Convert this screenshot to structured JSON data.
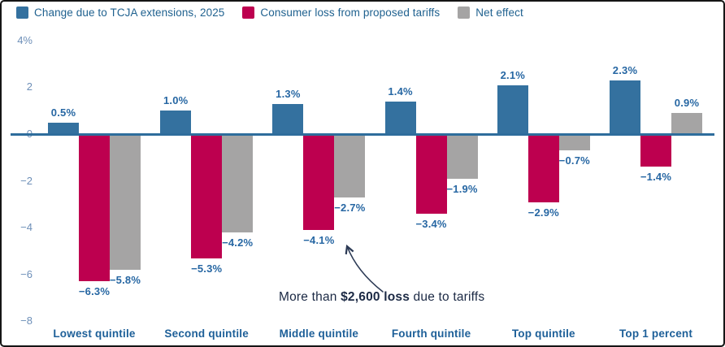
{
  "chart_data": {
    "type": "bar",
    "title": "",
    "categories": [
      "Lowest quintile",
      "Second quintile",
      "Middle quintile",
      "Fourth quintile",
      "Top quintile",
      "Top 1 percent"
    ],
    "series": [
      {
        "name": "Change due to TCJA extensions, 2025",
        "color": "#34719f",
        "values": [
          0.5,
          1.0,
          1.3,
          1.4,
          2.1,
          2.3
        ],
        "labels": [
          "0.5%",
          "1.0%",
          "1.3%",
          "1.4%",
          "2.1%",
          "2.3%"
        ]
      },
      {
        "name": "Consumer loss from proposed tariffs",
        "color": "#bd004f",
        "values": [
          -6.3,
          -5.3,
          -4.1,
          -3.4,
          -2.9,
          -1.4
        ],
        "labels": [
          "−6.3%",
          "−5.3%",
          "−4.1%",
          "−3.4%",
          "−2.9%",
          "−1.4%"
        ]
      },
      {
        "name": "Net effect",
        "color": "#a5a4a4",
        "values": [
          -5.8,
          -4.2,
          -2.7,
          -1.9,
          -0.7,
          0.9
        ],
        "labels": [
          "−5.8%",
          "−4.2%",
          "−2.7%",
          "−1.9%",
          "−0.7%",
          "0.9%"
        ]
      }
    ],
    "yticks": [
      {
        "value": 4,
        "label": "4%"
      },
      {
        "value": 2,
        "label": "2"
      },
      {
        "value": 0,
        "label": "0"
      },
      {
        "value": -2,
        "label": "−2"
      },
      {
        "value": -4,
        "label": "−4"
      },
      {
        "value": -6,
        "label": "−6"
      },
      {
        "value": -8,
        "label": "−8"
      }
    ],
    "ylim": [
      -8,
      4
    ],
    "grid": false,
    "legend_position": "top"
  },
  "annotation": {
    "prefix": "More than ",
    "bold": "$2,600 loss",
    "suffix": " due to tariffs"
  }
}
